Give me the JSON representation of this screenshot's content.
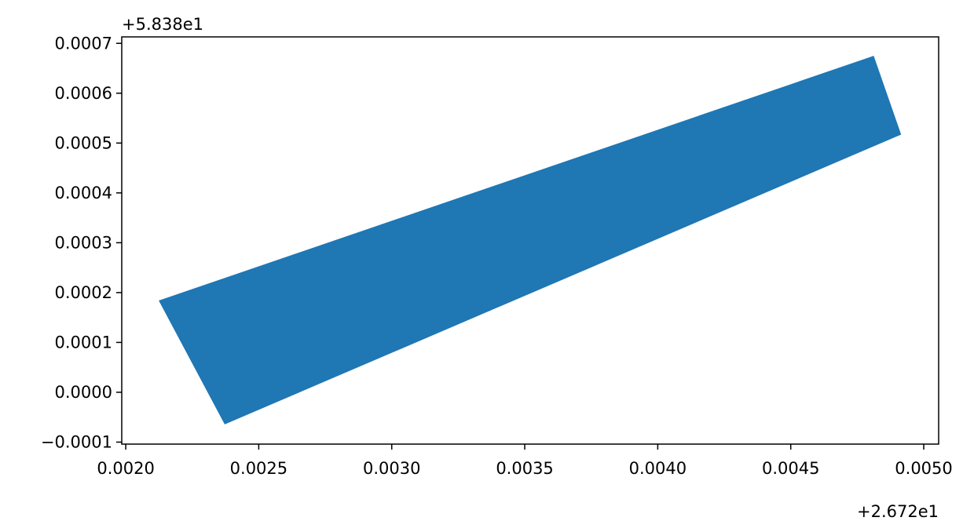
{
  "chart_data": {
    "type": "polygon",
    "x": [
      0.002124,
      0.004812,
      0.004915,
      0.002372
    ],
    "y": [
      0.000184,
      0.000675,
      0.000517,
      -6.45e-05
    ],
    "color": "#1f77b4",
    "xlim": [
      0.001985,
      0.005056
    ],
    "ylim": [
      -0.000104,
      0.000713
    ],
    "xticks": [
      {
        "value": 0.002,
        "label": "0.0020"
      },
      {
        "value": 0.0025,
        "label": "0.0025"
      },
      {
        "value": 0.003,
        "label": "0.0030"
      },
      {
        "value": 0.0035,
        "label": "0.0035"
      },
      {
        "value": 0.004,
        "label": "0.0040"
      },
      {
        "value": 0.0045,
        "label": "0.0045"
      },
      {
        "value": 0.005,
        "label": "0.0050"
      }
    ],
    "yticks": [
      {
        "value": -0.0001,
        "label": "−0.0001"
      },
      {
        "value": 0,
        "label": "0.0000"
      },
      {
        "value": 0.0001,
        "label": "0.0001"
      },
      {
        "value": 0.0002,
        "label": "0.0002"
      },
      {
        "value": 0.0003,
        "label": "0.0003"
      },
      {
        "value": 0.0004,
        "label": "0.0004"
      },
      {
        "value": 0.0005,
        "label": "0.0005"
      },
      {
        "value": 0.0006,
        "label": "0.0006"
      },
      {
        "value": 0.0007,
        "label": "0.0007"
      }
    ],
    "x_offset": "+2.672e1",
    "y_offset": "+5.838e1"
  }
}
